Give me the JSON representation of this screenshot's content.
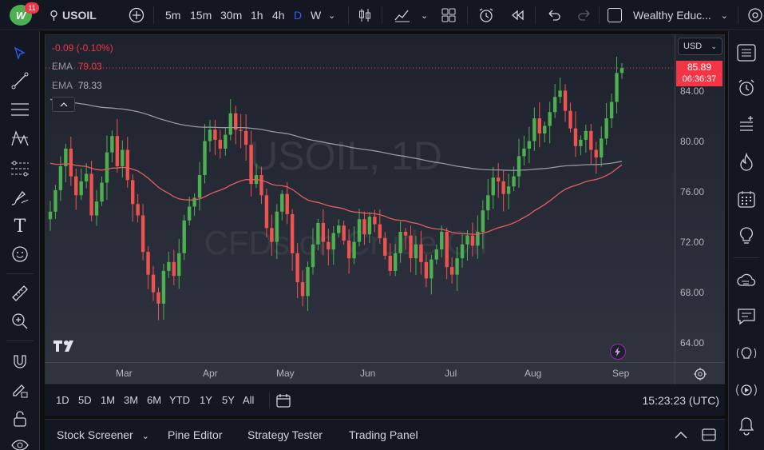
{
  "app": {
    "badge": "11",
    "logo_text": "W"
  },
  "header": {
    "symbol": "USOIL",
    "intervals": [
      "5m",
      "15m",
      "30m",
      "1h",
      "4h",
      "D",
      "W"
    ],
    "active_interval": "D",
    "account": "Wealthy Educ..."
  },
  "chart": {
    "watermark_symbol": "USOIL, 1D",
    "watermark_desc": "CFDs on Crude Oil",
    "change": "-0.09 (-0.10%)",
    "ema1_label": "EMA",
    "ema1_value": "79.03",
    "ema2_label": "EMA",
    "ema2_value": "78.33",
    "currency": "USD",
    "last_price": "85.89",
    "countdown": "06:36:37",
    "price_ticks": [
      "84.00",
      "80.00",
      "76.00",
      "72.00",
      "68.00",
      "64.00"
    ],
    "time_ticks": [
      "Mar",
      "Apr",
      "May",
      "Jun",
      "Jul",
      "Aug",
      "Sep"
    ],
    "colors": {
      "up": "#26a69a",
      "up_bright": "#4caf50",
      "down": "#ef5350",
      "ema_fast": "#e35f5f",
      "ema_slow": "#9598a1",
      "last": "#f23645"
    }
  },
  "chart_data": {
    "type": "candlestick",
    "x_labels": [
      "Mar",
      "Apr",
      "May",
      "Jun",
      "Jul",
      "Aug",
      "Sep"
    ],
    "ylim": [
      62.5,
      88.5
    ],
    "closes": [
      74.5,
      76.2,
      78.1,
      79.5,
      77.3,
      75.8,
      76.9,
      77.5,
      74.2,
      75.3,
      76.8,
      79.2,
      80.5,
      78.1,
      79.4,
      77.0,
      75.1,
      74.2,
      71.3,
      69.5,
      68.1,
      67.2,
      69.8,
      70.5,
      69.4,
      71.2,
      73.8,
      74.9,
      75.6,
      77.4,
      80.1,
      81.0,
      80.2,
      79.5,
      80.6,
      82.3,
      81.0,
      80.9,
      79.8,
      76.7,
      77.4,
      75.8,
      73.2,
      72.1,
      74.5,
      75.9,
      74.3,
      71.2,
      68.9,
      67.8,
      70.1,
      71.9,
      73.6,
      72.1,
      71.5,
      72.8,
      73.4,
      72.2,
      70.8,
      72.1,
      73.9,
      72.7,
      74.1,
      73.5,
      72.4,
      71.0,
      69.8,
      71.2,
      72.9,
      72.6,
      70.8,
      71.9,
      70.5,
      69.2,
      70.7,
      71.5,
      72.9,
      70.1,
      69.5,
      70.8,
      71.9,
      72.6,
      71.8,
      72.9,
      74.6,
      75.8,
      77.2,
      76.9,
      75.9,
      76.5,
      77.3,
      78.9,
      79.5,
      80.1,
      81.9,
      80.7,
      81.3,
      82.4,
      83.6,
      84.1,
      82.5,
      81.1,
      79.7,
      80.2,
      80.9,
      79.4,
      78.8,
      80.3,
      81.9,
      83.2,
      85.5,
      85.89
    ],
    "ema_fast_start": 78.5,
    "ema_slow_start": 83.5,
    "last": 85.89
  },
  "range_bar": {
    "ranges": [
      "1D",
      "5D",
      "1M",
      "3M",
      "6M",
      "YTD",
      "1Y",
      "5Y",
      "All"
    ],
    "clock": "15:23:23 (UTC)"
  },
  "panel": {
    "tabs": [
      "Stock Screener",
      "Pine Editor",
      "Strategy Tester",
      "Trading Panel"
    ]
  }
}
